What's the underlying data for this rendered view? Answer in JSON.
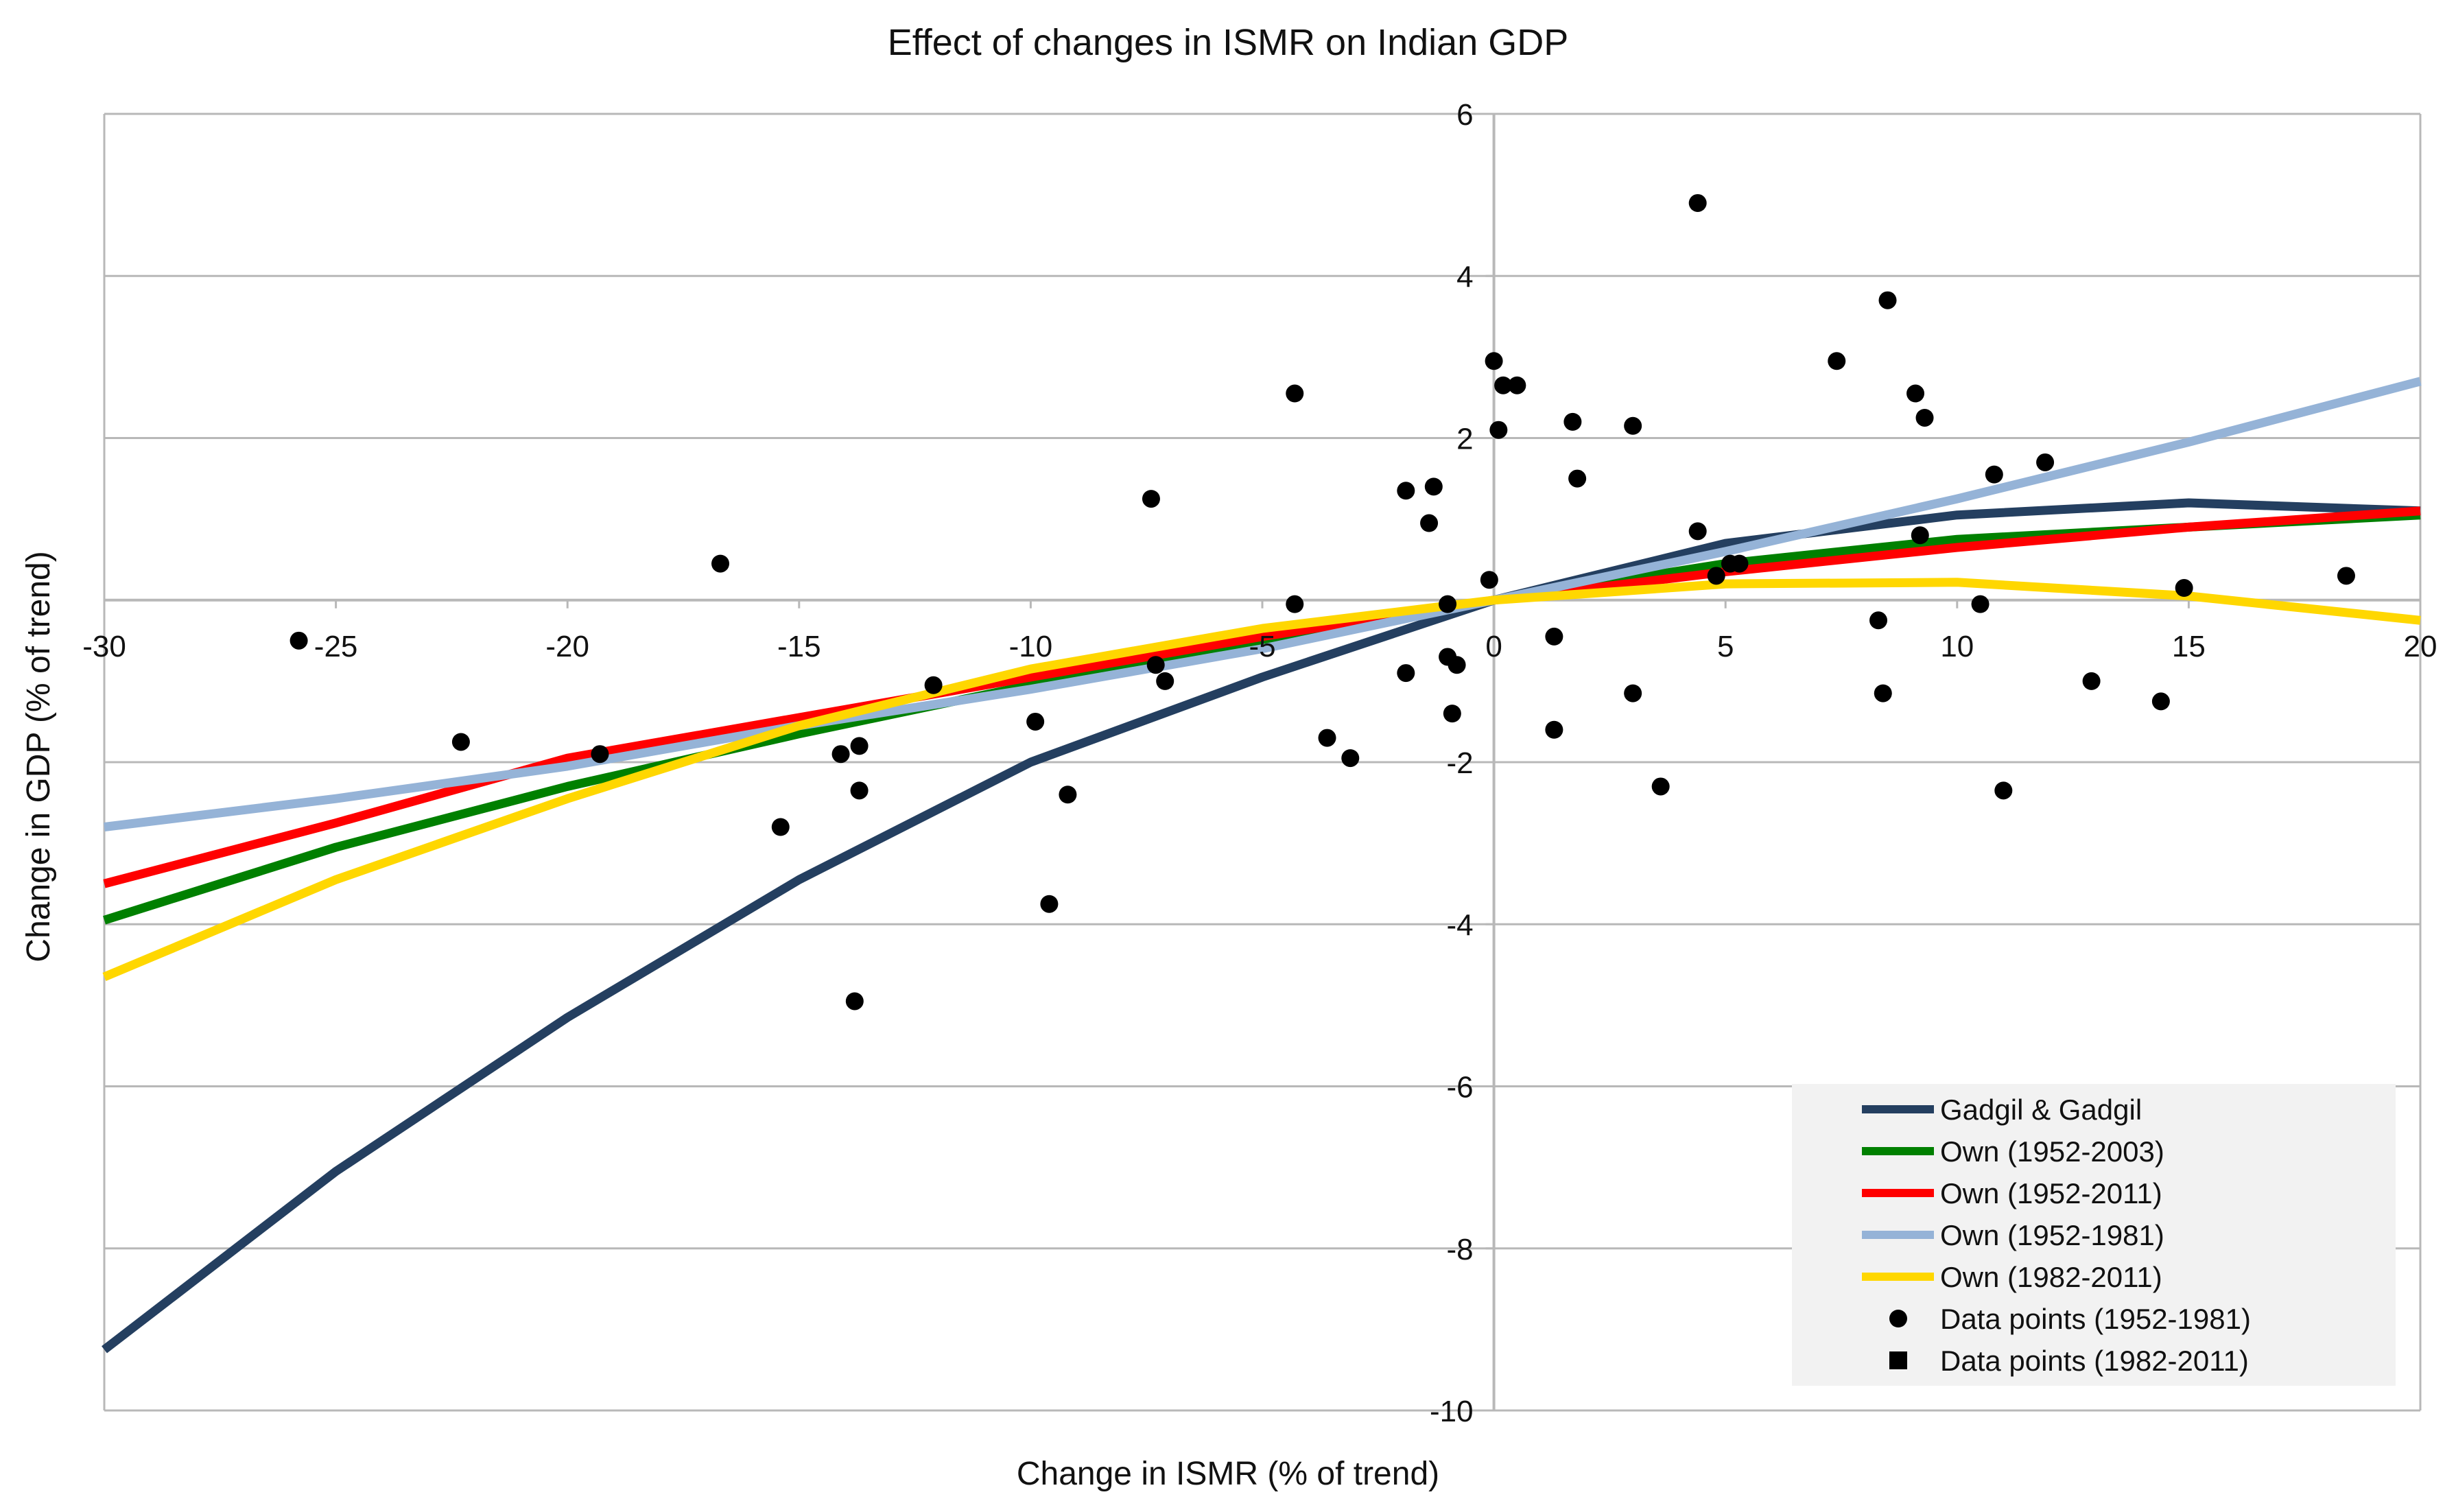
{
  "chart_data": {
    "type": "line",
    "title": "Effect of changes in ISMR on Indian GDP",
    "xlabel": "Change in ISMR (% of trend)",
    "ylabel": "Change in GDP (% of trend)",
    "xlim": [
      -30,
      20
    ],
    "ylim": [
      -10,
      6
    ],
    "x_ticks": [
      -30,
      -25,
      -20,
      -15,
      -10,
      -5,
      0,
      5,
      10,
      15,
      20
    ],
    "y_ticks": [
      6,
      4,
      2,
      -2,
      -4,
      -6,
      -8,
      -10
    ],
    "y_tick_labels": [
      "6",
      "4",
      "2",
      "-2",
      "-4",
      "-6",
      "-8",
      "-10"
    ],
    "x_tick_labels": [
      "-30",
      "-25",
      "-20",
      "-15",
      "-10",
      "-5",
      "0",
      "5",
      "10",
      "15",
      "20"
    ],
    "grid": "horizontal",
    "legend_position": "bottom-right",
    "series": [
      {
        "name": "Gadgil & Gadgil",
        "color": "#243f60",
        "x": [
          -30,
          -25,
          -20,
          -15,
          -10,
          -5,
          0,
          5,
          10,
          15,
          20
        ],
        "y": [
          -9.25,
          -7.05,
          -5.15,
          -3.45,
          -2.0,
          -0.95,
          0.0,
          0.7,
          1.05,
          1.2,
          1.1
        ]
      },
      {
        "name": "Own (1952-2003)",
        "color": "#008000",
        "x": [
          -30,
          -25,
          -20,
          -15,
          -10,
          -5,
          0,
          5,
          10,
          15,
          20
        ],
        "y": [
          -3.95,
          -3.05,
          -2.3,
          -1.65,
          -1.05,
          -0.5,
          0.0,
          0.45,
          0.75,
          0.9,
          1.05
        ]
      },
      {
        "name": "Own (1952-2011)",
        "color": "#ff0000",
        "x": [
          -30,
          -25,
          -20,
          -15,
          -10,
          -5,
          0,
          5,
          10,
          15,
          20
        ],
        "y": [
          -3.5,
          -2.75,
          -1.95,
          -1.45,
          -0.95,
          -0.45,
          0.0,
          0.35,
          0.65,
          0.9,
          1.1
        ]
      },
      {
        "name": "Own (1952-1981)",
        "color": "#95b3d7",
        "x": [
          -30,
          -25,
          -20,
          -15,
          -10,
          -5,
          0,
          5,
          10,
          15,
          20
        ],
        "y": [
          -2.8,
          -2.45,
          -2.05,
          -1.55,
          -1.1,
          -0.6,
          0.0,
          0.6,
          1.25,
          1.95,
          2.7
        ]
      },
      {
        "name": "Own (1982-2011)",
        "color": "#ffd700",
        "x": [
          -30,
          -25,
          -20,
          -15,
          -10,
          -5,
          0,
          5,
          10,
          15,
          20
        ],
        "y": [
          -4.65,
          -3.45,
          -2.45,
          -1.55,
          -0.85,
          -0.35,
          0.0,
          0.2,
          0.22,
          0.05,
          -0.25
        ]
      }
    ],
    "scatter_series": [
      {
        "name": "Data points (1952-1981)",
        "marker": "circle",
        "color": "#000000",
        "points": [
          [
            -25.8,
            -0.5
          ],
          [
            -22.3,
            -1.75
          ],
          [
            -19.3,
            -1.9
          ],
          [
            -16.7,
            0.45
          ],
          [
            -15.4,
            -2.8
          ],
          [
            -14.1,
            -1.9
          ],
          [
            -13.7,
            -1.8
          ],
          [
            -13.7,
            -2.35
          ],
          [
            -13.8,
            -4.95
          ],
          [
            -12.1,
            -1.05
          ],
          [
            -9.9,
            -1.5
          ],
          [
            -9.6,
            -3.75
          ],
          [
            -9.2,
            -2.4
          ],
          [
            -7.4,
            1.25
          ],
          [
            -7.3,
            -0.8
          ],
          [
            -7.1,
            -1.0
          ],
          [
            -4.3,
            -0.05
          ],
          [
            -4.3,
            2.55
          ],
          [
            -3.6,
            -1.7
          ],
          [
            -3.1,
            -1.95
          ],
          [
            -1.9,
            -0.9
          ],
          [
            -1.9,
            1.35
          ],
          [
            -1.4,
            0.95
          ],
          [
            -1.3,
            1.4
          ],
          [
            -1.0,
            -0.05
          ],
          [
            -1.0,
            -0.7
          ],
          [
            -0.9,
            -1.4
          ],
          [
            -0.8,
            -0.8
          ],
          [
            -0.1,
            0.25
          ],
          [
            0.0,
            2.95
          ],
          [
            0.1,
            2.1
          ],
          [
            0.2,
            2.65
          ],
          [
            0.5,
            2.65
          ],
          [
            1.3,
            -0.45
          ],
          [
            1.3,
            -1.6
          ],
          [
            1.7,
            2.2
          ],
          [
            1.8,
            1.5
          ],
          [
            3.0,
            2.15
          ],
          [
            3.0,
            -1.15
          ],
          [
            3.6,
            -2.3
          ],
          [
            4.4,
            4.9
          ],
          [
            4.4,
            0.85
          ],
          [
            4.8,
            0.3
          ],
          [
            5.1,
            0.45
          ],
          [
            5.3,
            0.45
          ],
          [
            7.4,
            2.95
          ],
          [
            8.3,
            -0.25
          ],
          [
            8.4,
            -1.15
          ],
          [
            8.5,
            3.7
          ],
          [
            9.1,
            2.55
          ],
          [
            9.2,
            0.8
          ],
          [
            9.3,
            2.25
          ],
          [
            10.5,
            -0.05
          ],
          [
            10.8,
            1.55
          ],
          [
            11.0,
            -2.35
          ],
          [
            11.9,
            1.7
          ],
          [
            12.9,
            -1.0
          ],
          [
            14.4,
            -1.25
          ],
          [
            14.9,
            0.15
          ],
          [
            18.4,
            0.3
          ]
        ]
      },
      {
        "name": "Data points (1982-2011)",
        "marker": "square",
        "color": "#000000",
        "points": []
      }
    ]
  }
}
